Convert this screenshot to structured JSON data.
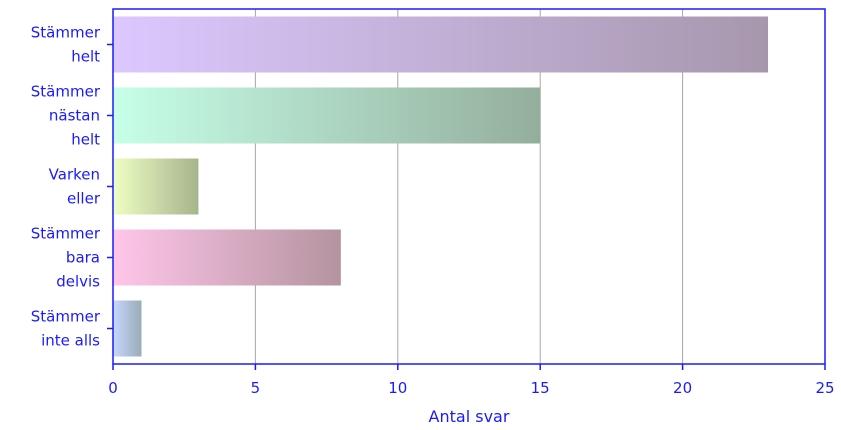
{
  "chart_data": {
    "type": "bar",
    "orientation": "horizontal",
    "categories": [
      [
        "Stämmer",
        "helt"
      ],
      [
        "Stämmer",
        "nästan",
        "helt"
      ],
      [
        "Varken",
        "eller"
      ],
      [
        "Stämmer",
        "bara",
        "delvis"
      ],
      [
        "Stämmer",
        "inte alls"
      ]
    ],
    "values": [
      23,
      15,
      3,
      8,
      1
    ],
    "xlabel": "Antal svar",
    "ylabel": "",
    "xlim": [
      0,
      25
    ],
    "xticks": [
      "0",
      "5",
      "10",
      "15",
      "20",
      "25"
    ],
    "grid": "vertical",
    "bar_colors": [
      [
        "#dcc8ff",
        "#a797ad"
      ],
      [
        "#c6ffe8",
        "#94ae9c"
      ],
      [
        "#eeffc4",
        "#a6b48c"
      ],
      [
        "#ffc6ea",
        "#b4939f"
      ],
      [
        "#c6d8ff",
        "#9aabb7"
      ]
    ],
    "axis_color": "#1a1aff",
    "grid_color": "#a8a8a8"
  }
}
